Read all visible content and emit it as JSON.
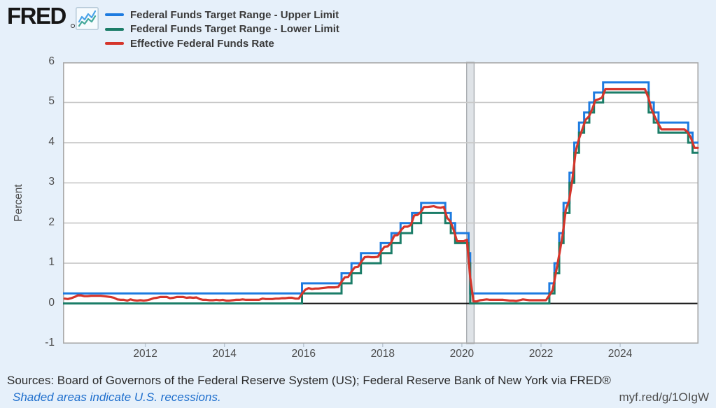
{
  "colors": {
    "background": "#e6f0fa",
    "plot_background": "#ffffff",
    "gridline": "#c8c8c8",
    "plot_border": "#a9a9a9",
    "zero_line": "#141414",
    "recession_fill": "#dfe3e7",
    "recession_border": "#aaaeb2",
    "link_blue": "#1f6fcd"
  },
  "header": {
    "logo_text": "FRED",
    "legend": [
      {
        "label": "Federal Funds Target Range - Upper Limit",
        "color": "#1d7be0"
      },
      {
        "label": "Federal Funds Target Range - Lower Limit",
        "color": "#1b7d68"
      },
      {
        "label": "Effective Federal Funds Rate",
        "color": "#d5352b"
      }
    ]
  },
  "footer": {
    "sources": "Sources: Board of Governors of the Federal Reserve System (US); Federal Reserve Bank of New York via FRED®",
    "recession_note": "Shaded areas indicate U.S. recessions.",
    "short_url": "myf.red/g/1OIgW"
  },
  "chart_data": {
    "type": "line",
    "title": "",
    "xlabel": "",
    "ylabel": "Percent",
    "xlim": [
      2009.92,
      2025.98
    ],
    "ylim": [
      -1,
      6
    ],
    "grid": "horizontal",
    "legend_position": "top-left",
    "x_ticks": [
      {
        "value": 2012,
        "label": "2012"
      },
      {
        "value": 2014,
        "label": "2014"
      },
      {
        "value": 2016,
        "label": "2016"
      },
      {
        "value": 2018,
        "label": "2018"
      },
      {
        "value": 2020,
        "label": "2020"
      },
      {
        "value": 2022,
        "label": "2022"
      },
      {
        "value": 2024,
        "label": "2024"
      }
    ],
    "y_ticks": [
      {
        "value": -1,
        "label": "-1"
      },
      {
        "value": 0,
        "label": "0"
      },
      {
        "value": 1,
        "label": "1"
      },
      {
        "value": 2,
        "label": "2"
      },
      {
        "value": 3,
        "label": "3"
      },
      {
        "value": 4,
        "label": "4"
      },
      {
        "value": 5,
        "label": "5"
      },
      {
        "value": 6,
        "label": "6"
      }
    ],
    "y_gridlines": [
      1,
      2,
      3,
      4,
      5
    ],
    "recessions": [
      {
        "start": 2020.12,
        "end": 2020.31
      }
    ],
    "series": [
      {
        "name": "Federal Funds Target Range - Upper Limit",
        "color": "#1d7be0",
        "type": "step",
        "points": [
          [
            2009.92,
            0.25
          ],
          [
            2015.96,
            0.5
          ],
          [
            2016.96,
            0.75
          ],
          [
            2017.21,
            1.0
          ],
          [
            2017.45,
            1.25
          ],
          [
            2017.95,
            1.5
          ],
          [
            2018.22,
            1.75
          ],
          [
            2018.45,
            2.0
          ],
          [
            2018.74,
            2.25
          ],
          [
            2018.97,
            2.5
          ],
          [
            2019.58,
            2.25
          ],
          [
            2019.72,
            2.0
          ],
          [
            2019.83,
            1.75
          ],
          [
            2020.17,
            1.25
          ],
          [
            2020.21,
            0.25
          ],
          [
            2022.21,
            0.5
          ],
          [
            2022.34,
            1.0
          ],
          [
            2022.46,
            1.75
          ],
          [
            2022.57,
            2.5
          ],
          [
            2022.72,
            3.25
          ],
          [
            2022.84,
            4.0
          ],
          [
            2022.96,
            4.5
          ],
          [
            2023.09,
            4.75
          ],
          [
            2023.22,
            5.0
          ],
          [
            2023.34,
            5.25
          ],
          [
            2023.57,
            5.5
          ],
          [
            2024.72,
            5.0
          ],
          [
            2024.85,
            4.75
          ],
          [
            2024.97,
            4.5
          ],
          [
            2025.72,
            4.25
          ],
          [
            2025.83,
            4.0
          ],
          [
            2025.98,
            4.0
          ]
        ]
      },
      {
        "name": "Federal Funds Target Range - Lower Limit",
        "color": "#1b7d68",
        "type": "step",
        "points": [
          [
            2009.92,
            0.0
          ],
          [
            2015.96,
            0.25
          ],
          [
            2016.96,
            0.5
          ],
          [
            2017.21,
            0.75
          ],
          [
            2017.45,
            1.0
          ],
          [
            2017.95,
            1.25
          ],
          [
            2018.22,
            1.5
          ],
          [
            2018.45,
            1.75
          ],
          [
            2018.74,
            2.0
          ],
          [
            2018.97,
            2.25
          ],
          [
            2019.58,
            2.0
          ],
          [
            2019.72,
            1.75
          ],
          [
            2019.83,
            1.5
          ],
          [
            2020.17,
            1.0
          ],
          [
            2020.21,
            0.0
          ],
          [
            2022.21,
            0.25
          ],
          [
            2022.34,
            0.75
          ],
          [
            2022.46,
            1.5
          ],
          [
            2022.57,
            2.25
          ],
          [
            2022.72,
            3.0
          ],
          [
            2022.84,
            3.75
          ],
          [
            2022.96,
            4.25
          ],
          [
            2023.09,
            4.5
          ],
          [
            2023.22,
            4.75
          ],
          [
            2023.34,
            5.0
          ],
          [
            2023.57,
            5.25
          ],
          [
            2024.72,
            4.75
          ],
          [
            2024.85,
            4.5
          ],
          [
            2024.97,
            4.25
          ],
          [
            2025.72,
            4.0
          ],
          [
            2025.83,
            3.75
          ],
          [
            2025.98,
            3.75
          ]
        ]
      },
      {
        "name": "Effective Federal Funds Rate",
        "color": "#d5352b",
        "type": "line",
        "monthly_start": 2009.96,
        "values": [
          0.12,
          0.11,
          0.13,
          0.16,
          0.2,
          0.2,
          0.18,
          0.18,
          0.19,
          0.19,
          0.19,
          0.19,
          0.18,
          0.17,
          0.16,
          0.14,
          0.1,
          0.09,
          0.09,
          0.07,
          0.1,
          0.08,
          0.07,
          0.08,
          0.07,
          0.08,
          0.1,
          0.13,
          0.14,
          0.16,
          0.16,
          0.16,
          0.13,
          0.14,
          0.16,
          0.16,
          0.16,
          0.14,
          0.15,
          0.14,
          0.15,
          0.11,
          0.09,
          0.09,
          0.08,
          0.08,
          0.09,
          0.08,
          0.09,
          0.07,
          0.07,
          0.08,
          0.09,
          0.09,
          0.1,
          0.09,
          0.09,
          0.09,
          0.09,
          0.09,
          0.12,
          0.11,
          0.11,
          0.11,
          0.12,
          0.12,
          0.13,
          0.13,
          0.14,
          0.14,
          0.12,
          0.12,
          0.24,
          0.34,
          0.38,
          0.36,
          0.37,
          0.37,
          0.38,
          0.39,
          0.4,
          0.4,
          0.4,
          0.41,
          0.54,
          0.65,
          0.66,
          0.79,
          0.9,
          0.91,
          1.04,
          1.15,
          1.16,
          1.15,
          1.15,
          1.16,
          1.3,
          1.41,
          1.42,
          1.51,
          1.69,
          1.7,
          1.82,
          1.91,
          1.91,
          1.95,
          2.19,
          2.2,
          2.27,
          2.4,
          2.4,
          2.41,
          2.42,
          2.39,
          2.38,
          2.4,
          2.13,
          2.04,
          1.83,
          1.55,
          1.55,
          1.55,
          1.58,
          0.65,
          0.05,
          0.05,
          0.08,
          0.09,
          0.1,
          0.09,
          0.09,
          0.09,
          0.09,
          0.09,
          0.08,
          0.07,
          0.07,
          0.06,
          0.08,
          0.1,
          0.09,
          0.08,
          0.08,
          0.08,
          0.08,
          0.08,
          0.08,
          0.2,
          0.33,
          0.77,
          1.21,
          1.68,
          2.33,
          2.56,
          3.08,
          3.78,
          4.1,
          4.33,
          4.57,
          4.65,
          4.83,
          5.06,
          5.08,
          5.12,
          5.33,
          5.33,
          5.33,
          5.33,
          5.33,
          5.33,
          5.33,
          5.33,
          5.33,
          5.33,
          5.33,
          5.33,
          5.33,
          5.13,
          4.83,
          4.64,
          4.48,
          4.33,
          4.33,
          4.33,
          4.33,
          4.33,
          4.33,
          4.33,
          4.33,
          4.26,
          4.11,
          3.87,
          3.87
        ]
      }
    ]
  }
}
